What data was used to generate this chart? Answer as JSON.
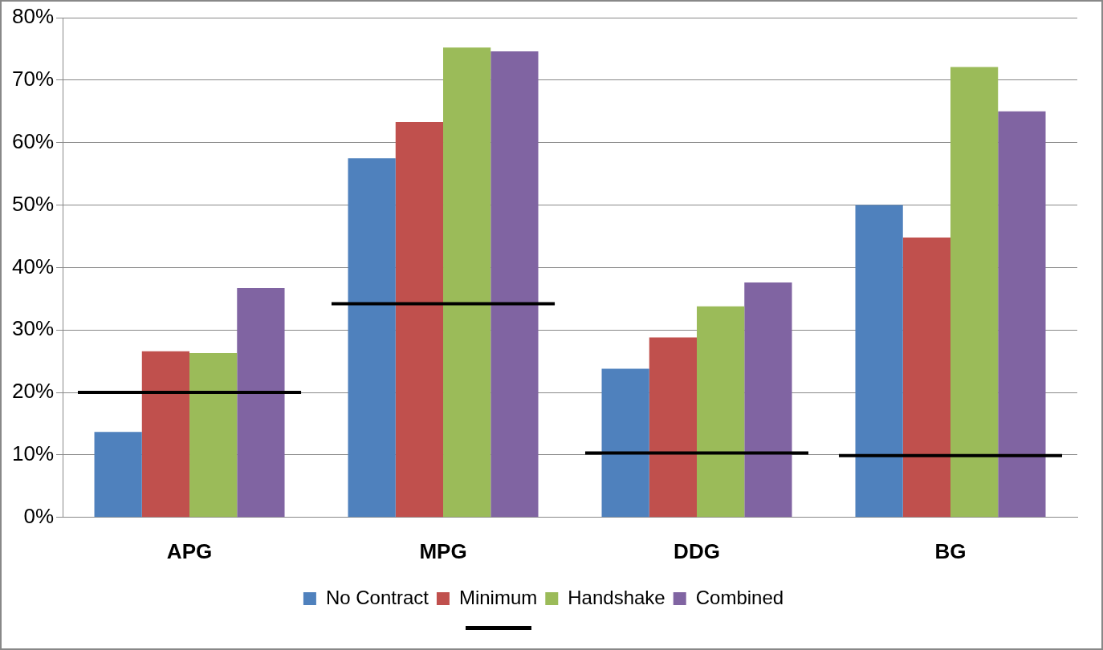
{
  "chart_data": {
    "type": "bar",
    "categories": [
      "APG",
      "MPG",
      "DDG",
      "BG"
    ],
    "series": [
      {
        "name": "No Contract",
        "color": "#4f81bd",
        "values": [
          13.7,
          57.5,
          23.8,
          50
        ]
      },
      {
        "name": "Minimum",
        "color": "#c0504d",
        "values": [
          26.6,
          63.3,
          28.8,
          44.8
        ]
      },
      {
        "name": "Handshake",
        "color": "#9bbb59",
        "values": [
          26.3,
          75.2,
          33.8,
          72.1
        ]
      },
      {
        "name": "Combined",
        "color": "#8064a2",
        "values": [
          36.7,
          74.6,
          37.6,
          65
        ]
      }
    ],
    "ref_lines": [
      {
        "axis": "y",
        "value": 20,
        "color": "#000000",
        "line_style": "solid"
      },
      {
        "axis": "y",
        "value": 34.2,
        "color": "#000000",
        "line_style": "solid"
      },
      {
        "axis": "y",
        "value": 10.3,
        "color": "#000000",
        "line_style": "solid"
      },
      {
        "axis": "y",
        "value": 9.9,
        "color": "#000000",
        "line_style": "solid"
      }
    ],
    "ylim": [
      0,
      80
    ],
    "yticks": [
      {
        "value": 0,
        "label": "0%"
      },
      {
        "value": 10,
        "label": "10%"
      },
      {
        "value": 20,
        "label": "20%"
      },
      {
        "value": 30,
        "label": "30%"
      },
      {
        "value": 40,
        "label": "40%"
      },
      {
        "value": 50,
        "label": "50%"
      },
      {
        "value": 60,
        "label": "60%"
      },
      {
        "value": 70,
        "label": "70%"
      },
      {
        "value": 80,
        "label": "80%"
      }
    ],
    "grid": "y",
    "legend": "bottom"
  }
}
